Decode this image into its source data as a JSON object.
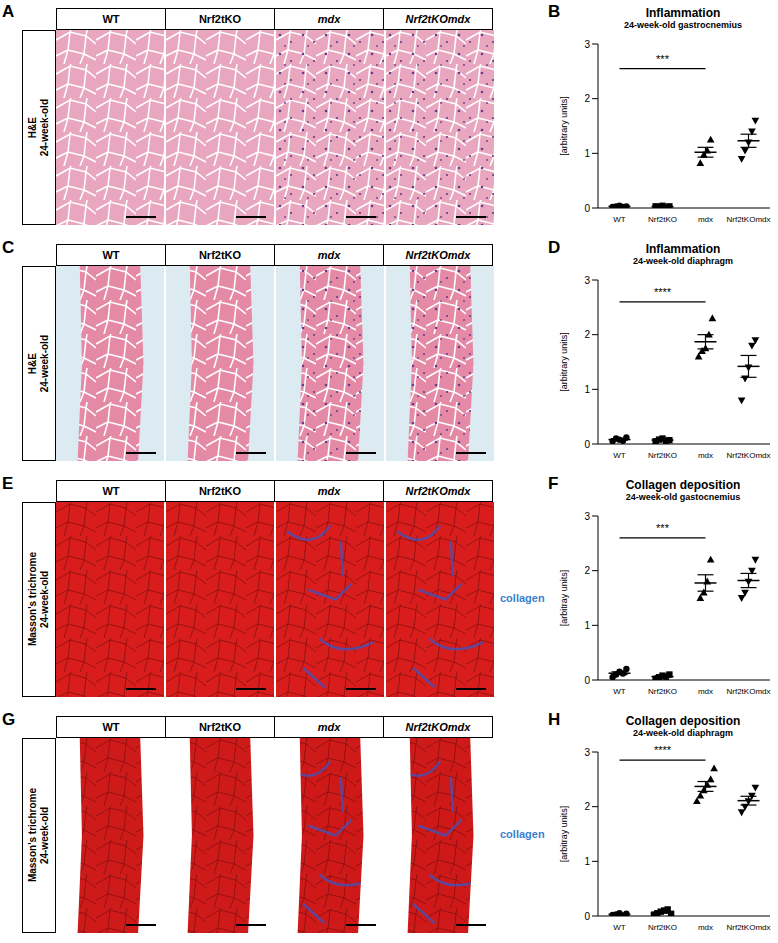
{
  "image_panels": [
    {
      "panel_label": "A",
      "stain_label": "H&E",
      "age_label": "24-week-old",
      "columns": [
        "WT",
        "Nrf2tKO",
        "mdx",
        "Nrf2tKOmdx"
      ],
      "color": "#e9a6bf"
    },
    {
      "panel_label": "C",
      "stain_label": "H&E",
      "age_label": "24-week-old",
      "columns": [
        "WT",
        "Nrf2tKO",
        "mdx",
        "Nrf2tKOmdx"
      ],
      "color": "#e58aa6"
    },
    {
      "panel_label": "E",
      "stain_label": "Masson's trichrome",
      "age_label": "24-week-old",
      "columns": [
        "WT",
        "Nrf2tKO",
        "mdx",
        "Nrf2tKOmdx"
      ],
      "color": "#d91d1d",
      "side_label": "collagen"
    },
    {
      "panel_label": "G",
      "stain_label": "Masson's trichrome",
      "age_label": "24-week-old",
      "columns": [
        "WT",
        "Nrf2tKO",
        "mdx",
        "Nrf2tKOmdx"
      ],
      "color": "#cf1a1a",
      "side_label": "collagen"
    }
  ],
  "chart_data": [
    {
      "type": "scatter",
      "panel_label": "B",
      "title": "Inflammation",
      "subtitle": "24-week-old gastrocnemius",
      "ylabel": "[arbitrary units]",
      "xlim": [
        -0.5,
        3.5
      ],
      "xticks": [
        {
          "value": 0,
          "label": "WT"
        },
        {
          "value": 1,
          "label": "Nrf2tKO"
        },
        {
          "value": 2,
          "label": "mdx"
        },
        {
          "value": 3,
          "label": "Nrf2tKOmdx"
        }
      ],
      "ylim": [
        0,
        3
      ],
      "yticks": [
        0,
        1,
        2,
        3
      ],
      "series": [
        {
          "name": "WT",
          "marker": "circle",
          "color": "#000000",
          "x": [
            -0.16,
            -0.08,
            0,
            0.08,
            0.16
          ],
          "values": [
            0.02,
            0.03,
            0.04,
            0.02,
            0.03
          ],
          "mean": 0.03,
          "sem": 0.004
        },
        {
          "name": "Nrf2tKO",
          "marker": "square",
          "color": "#000000",
          "x": [
            0.84,
            0.92,
            1,
            1.08,
            1.16
          ],
          "values": [
            0.03,
            0.02,
            0.04,
            0.01,
            0.03
          ],
          "mean": 0.026,
          "sem": 0.005
        },
        {
          "name": "mdx",
          "marker": "triangle",
          "color": "#000000",
          "x": [
            1.88,
            1.96,
            2.04,
            2.12
          ],
          "values": [
            0.82,
            0.97,
            1.05,
            1.25
          ],
          "mean": 1.02,
          "sem": 0.09
        },
        {
          "name": "Nrf2tKOmdx",
          "marker": "triangle-down",
          "color": "#000000",
          "x": [
            2.84,
            2.92,
            3,
            3.08,
            3.16
          ],
          "values": [
            0.9,
            1.05,
            1.2,
            1.4,
            1.6
          ],
          "mean": 1.23,
          "sem": 0.12
        }
      ],
      "significance": {
        "x1": 0,
        "x2": 2,
        "y": 2.55,
        "label": "***"
      }
    },
    {
      "type": "scatter",
      "panel_label": "D",
      "title": "Inflammation",
      "subtitle": "24-week-old diaphragm",
      "ylabel": "[arbitrary units]",
      "xlim": [
        -0.5,
        3.5
      ],
      "xticks": [
        {
          "value": 0,
          "label": "WT"
        },
        {
          "value": 1,
          "label": "Nrf2tKO"
        },
        {
          "value": 2,
          "label": "mdx"
        },
        {
          "value": 3,
          "label": "Nrf2tKOmdx"
        }
      ],
      "ylim": [
        0,
        3
      ],
      "yticks": [
        0,
        1,
        2,
        3
      ],
      "series": [
        {
          "name": "WT",
          "marker": "circle",
          "color": "#000000",
          "x": [
            -0.16,
            -0.08,
            0,
            0.08,
            0.16
          ],
          "values": [
            0.05,
            0.1,
            0.08,
            0.06,
            0.12
          ],
          "mean": 0.082,
          "sem": 0.013
        },
        {
          "name": "Nrf2tKO",
          "marker": "square",
          "color": "#000000",
          "x": [
            0.84,
            0.92,
            1,
            1.08,
            1.16
          ],
          "values": [
            0.05,
            0.08,
            0.1,
            0.06,
            0.07
          ],
          "mean": 0.072,
          "sem": 0.009
        },
        {
          "name": "mdx",
          "marker": "triangle",
          "color": "#000000",
          "x": [
            1.84,
            1.92,
            2,
            2.08,
            2.16
          ],
          "values": [
            1.6,
            1.7,
            1.75,
            2.0,
            2.3
          ],
          "mean": 1.87,
          "sem": 0.13
        },
        {
          "name": "Nrf2tKOmdx",
          "marker": "triangle-down",
          "color": "#000000",
          "x": [
            2.84,
            2.92,
            3,
            3.08,
            3.16
          ],
          "values": [
            0.8,
            1.2,
            1.4,
            1.8,
            1.9
          ],
          "mean": 1.42,
          "sem": 0.2
        }
      ],
      "significance": {
        "x1": 0,
        "x2": 2,
        "y": 2.6,
        "label": "****"
      }
    },
    {
      "type": "scatter",
      "panel_label": "F",
      "title": "Collagen deposition",
      "subtitle": "24-week-old gastocnemius",
      "ylabel": "[arbitray units]",
      "xlim": [
        -0.5,
        3.5
      ],
      "xticks": [
        {
          "value": 0,
          "label": "WT"
        },
        {
          "value": 1,
          "label": "Nrf2tKO"
        },
        {
          "value": 2,
          "label": "mdx"
        },
        {
          "value": 3,
          "label": "Nrf2tKOmdx"
        }
      ],
      "ylim": [
        0,
        3
      ],
      "yticks": [
        0,
        1,
        2,
        3
      ],
      "series": [
        {
          "name": "WT",
          "marker": "circle",
          "color": "#000000",
          "x": [
            -0.16,
            -0.08,
            0,
            0.08,
            0.16
          ],
          "values": [
            0.05,
            0.1,
            0.15,
            0.12,
            0.2
          ],
          "mean": 0.124,
          "sem": 0.025
        },
        {
          "name": "Nrf2tKO",
          "marker": "square",
          "color": "#000000",
          "x": [
            0.84,
            0.92,
            1,
            1.08,
            1.16
          ],
          "values": [
            0.02,
            0.05,
            0.08,
            0.06,
            0.1
          ],
          "mean": 0.062,
          "sem": 0.014
        },
        {
          "name": "mdx",
          "marker": "triangle",
          "color": "#000000",
          "x": [
            1.88,
            1.96,
            2.04,
            2.12
          ],
          "values": [
            1.5,
            1.6,
            1.8,
            2.2
          ],
          "mean": 1.775,
          "sem": 0.15
        },
        {
          "name": "Nrf2tKOmdx",
          "marker": "triangle-down",
          "color": "#000000",
          "x": [
            2.84,
            2.92,
            3,
            3.08,
            3.16
          ],
          "values": [
            1.5,
            1.6,
            1.8,
            2.0,
            2.2
          ],
          "mean": 1.82,
          "sem": 0.13
        }
      ],
      "significance": {
        "x1": 0,
        "x2": 2,
        "y": 2.6,
        "label": "***"
      }
    },
    {
      "type": "scatter",
      "panel_label": "H",
      "title": "Collagen deposition",
      "subtitle": "24-week-old diaphragm",
      "ylabel": "[arbitray units]",
      "xlim": [
        -0.5,
        3.5
      ],
      "xticks": [
        {
          "value": 0,
          "label": "WT"
        },
        {
          "value": 1,
          "label": "Nrf2tKO"
        },
        {
          "value": 2,
          "label": "mdx"
        },
        {
          "value": 3,
          "label": "Nrf2tKOmdx"
        }
      ],
      "ylim": [
        0,
        3
      ],
      "yticks": [
        0,
        1,
        2,
        3
      ],
      "series": [
        {
          "name": "WT",
          "marker": "circle",
          "color": "#000000",
          "x": [
            -0.16,
            -0.08,
            0,
            0.08,
            0.16
          ],
          "values": [
            0.02,
            0.03,
            0.05,
            0.01,
            0.04
          ],
          "mean": 0.03,
          "sem": 0.007
        },
        {
          "name": "Nrf2tKO",
          "marker": "square",
          "color": "#000000",
          "x": [
            0.8,
            0.88,
            0.96,
            1.04,
            1.12,
            1.2
          ],
          "values": [
            0.02,
            0.05,
            0.08,
            0.1,
            0.12,
            0.04
          ],
          "mean": 0.068,
          "sem": 0.015
        },
        {
          "name": "mdx",
          "marker": "triangle",
          "color": "#000000",
          "x": [
            1.8,
            1.88,
            1.96,
            2.04,
            2.12,
            2.2
          ],
          "values": [
            2.1,
            2.2,
            2.3,
            2.4,
            2.5,
            2.7
          ],
          "mean": 2.37,
          "sem": 0.09
        },
        {
          "name": "Nrf2tKOmdx",
          "marker": "triangle-down",
          "color": "#000000",
          "x": [
            2.84,
            2.92,
            3,
            3.08,
            3.16
          ],
          "values": [
            1.9,
            2.0,
            2.1,
            2.2,
            2.35
          ],
          "mean": 2.11,
          "sem": 0.08
        }
      ],
      "significance": {
        "x1": 0,
        "x2": 2,
        "y": 2.85,
        "label": "****"
      }
    }
  ]
}
